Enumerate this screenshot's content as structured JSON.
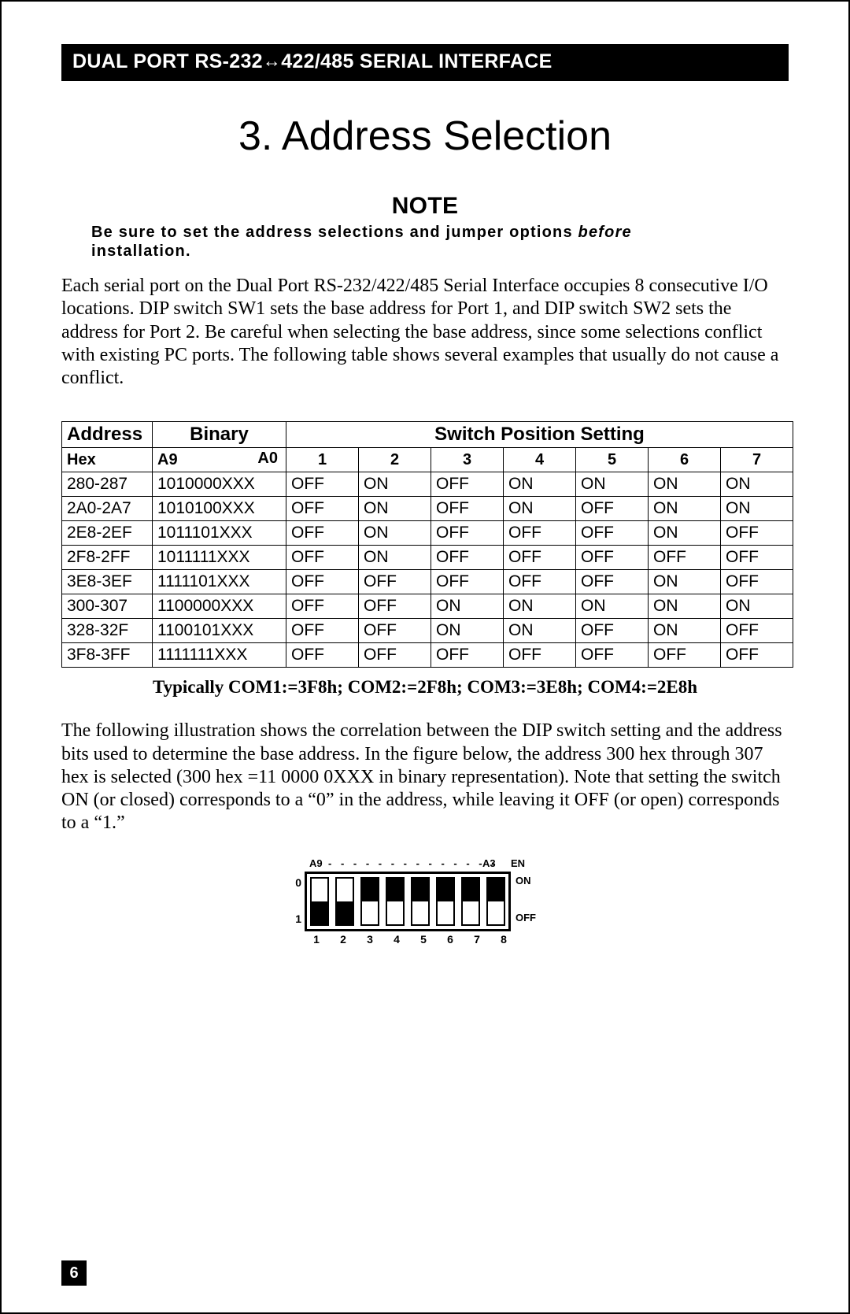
{
  "header": {
    "prefix": "DUAL PORT RS-232",
    "arrows": "↔",
    "suffix": "422/485 SERIAL INTERFACE"
  },
  "chapter_title": "3.  Address Selection",
  "note": {
    "heading": "NOTE",
    "text_prefix": "Be sure to set the address selections and jumper options ",
    "text_emph": "before",
    "text_suffix": " installation."
  },
  "para1": "Each serial port on the Dual Port RS-232/422/485 Serial Interface occupies 8 consecutive I/O locations. DIP switch SW1 sets the base address for Port 1, and DIP switch SW2 sets the address for Port 2. Be careful when selecting the base address, since some selections conflict with existing PC ports. The following table shows several examples that usually do not cause a conflict.",
  "table": {
    "header1": {
      "address": "Address",
      "binary": "Binary",
      "switch": "Switch Position Setting"
    },
    "header2": {
      "hex": "Hex",
      "a9": "A9",
      "a0": "A0",
      "cols": [
        "1",
        "2",
        "3",
        "4",
        "5",
        "6",
        "7"
      ]
    },
    "colwidths": {
      "hex": 115,
      "binary": 170,
      "sw": 92
    },
    "rows": [
      {
        "hex": "280-287",
        "bin": "1010000XXX",
        "sw": [
          "OFF",
          "ON",
          "OFF",
          "ON",
          "ON",
          "ON",
          "ON"
        ]
      },
      {
        "hex": "2A0-2A7",
        "bin": "1010100XXX",
        "sw": [
          "OFF",
          "ON",
          "OFF",
          "ON",
          "OFF",
          "ON",
          "ON"
        ]
      },
      {
        "hex": "2E8-2EF",
        "bin": "1011101XXX",
        "sw": [
          "OFF",
          "ON",
          "OFF",
          "OFF",
          "OFF",
          "ON",
          "OFF"
        ]
      },
      {
        "hex": "2F8-2FF",
        "bin": "1011111XXX",
        "sw": [
          "OFF",
          "ON",
          "OFF",
          "OFF",
          "OFF",
          "OFF",
          "OFF"
        ]
      },
      {
        "hex": "3E8-3EF",
        "bin": "1111101XXX",
        "sw": [
          "OFF",
          "OFF",
          "OFF",
          "OFF",
          "OFF",
          "ON",
          "OFF"
        ]
      },
      {
        "hex": "300-307",
        "bin": "1100000XXX",
        "sw": [
          "OFF",
          "OFF",
          "ON",
          "ON",
          "ON",
          "ON",
          "ON"
        ]
      },
      {
        "hex": "328-32F",
        "bin": "1100101XXX",
        "sw": [
          "OFF",
          "OFF",
          "ON",
          "ON",
          "OFF",
          "ON",
          "OFF"
        ]
      },
      {
        "hex": "3F8-3FF",
        "bin": "1111111XXX",
        "sw": [
          "OFF",
          "OFF",
          "OFF",
          "OFF",
          "OFF",
          "OFF",
          "OFF"
        ]
      }
    ]
  },
  "caption": "Typically COM1:=3F8h; COM2:=2F8h; COM3:=3E8h; COM4:=2E8h",
  "para2": "The following illustration shows the correlation between the DIP switch setting and the address bits used to determine the base address. In the figure below, the address 300 hex through 307 hex is selected (300 hex =11 0000 0XXX in binary representation). Note that setting the switch ON (or closed) corresponds to a “0” in the address, while leaving it OFF (or open) corresponds to a “1.”",
  "dip": {
    "top": {
      "a9": "A9",
      "dashes": "- - - - - - - - - - - - - -",
      "a3": "A3",
      "en": "EN"
    },
    "side": {
      "zero": "0",
      "one": "1"
    },
    "right": {
      "on": "ON",
      "off": "OFF"
    },
    "states": [
      "off",
      "off",
      "on",
      "on",
      "on",
      "on",
      "on",
      "on"
    ],
    "nums": [
      "1",
      "2",
      "3",
      "4",
      "5",
      "6",
      "7",
      "8"
    ]
  },
  "page_number": "6"
}
